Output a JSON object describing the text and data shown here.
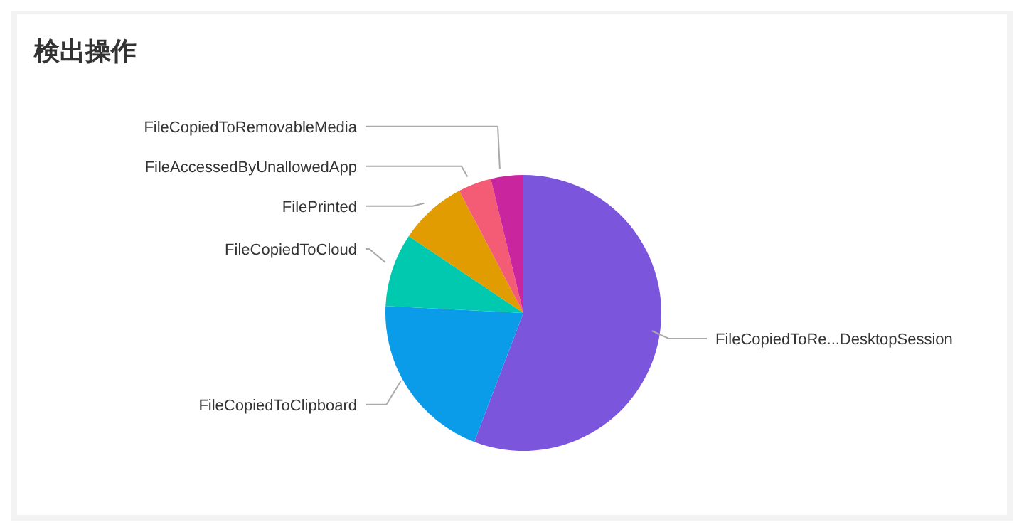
{
  "chart_data": {
    "type": "pie",
    "title": "検出操作",
    "categories": [
      "FileCopiedToRe...DesktopSession",
      "FileCopiedToClipboard",
      "FileCopiedToCloud",
      "FilePrinted",
      "FileAccessedByUnallowedApp",
      "FileCopiedToRemovableMedia"
    ],
    "values": [
      55.8,
      20,
      8.6,
      7.9,
      3.9,
      3.8
    ],
    "colors": [
      "#7b55db",
      "#0b9ce9",
      "#00c9b0",
      "#e09c00",
      "#f45c76",
      "#c9259e"
    ],
    "legend": false
  }
}
